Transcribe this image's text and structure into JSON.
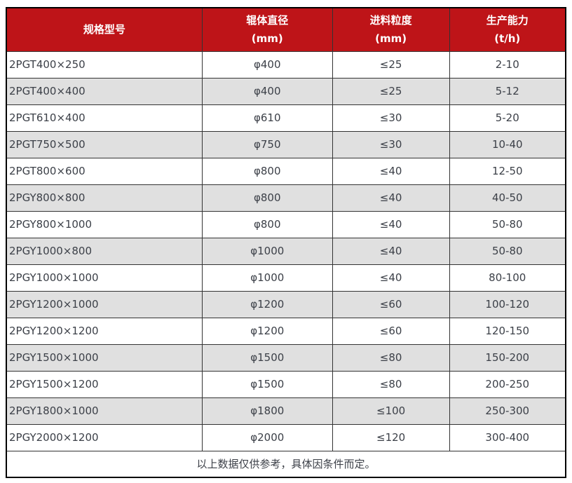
{
  "colors": {
    "header_bg": "#be1418",
    "header_text": "#ffffff",
    "row_bg": "#ffffff",
    "row_alt_bg": "#e0e0e0",
    "border_inner": "#333333",
    "border_outer": "#000000",
    "text_color": "#3c4048"
  },
  "table": {
    "columns": [
      {
        "line1": "规格型号",
        "line2": ""
      },
      {
        "line1": "辊体直径",
        "line2": "(mm)"
      },
      {
        "line1": "进料粒度",
        "line2": "(mm)"
      },
      {
        "line1": "生产能力",
        "line2": "(t/h)"
      }
    ],
    "rows": [
      [
        "2PGT400×250",
        "φ400",
        "≤25",
        "2-10"
      ],
      [
        "2PGT400×400",
        "φ400",
        "≤25",
        "5-12"
      ],
      [
        "2PGT610×400",
        "φ610",
        "≤30",
        "5-20"
      ],
      [
        "2PGT750×500",
        "φ750",
        "≤30",
        "10-40"
      ],
      [
        "2PGT800×600",
        "φ800",
        "≤40",
        "12-50"
      ],
      [
        "2PGY800×800",
        "φ800",
        "≤40",
        "40-50"
      ],
      [
        "2PGY800×1000",
        "φ800",
        "≤40",
        "50-80"
      ],
      [
        "2PGY1000×800",
        "φ1000",
        "≤40",
        "50-80"
      ],
      [
        "2PGY1000×1000",
        "φ1000",
        "≤40",
        "80-100"
      ],
      [
        "2PGY1200×1000",
        "φ1200",
        "≤60",
        "100-120"
      ],
      [
        "2PGY1200×1200",
        "φ1200",
        "≤60",
        "120-150"
      ],
      [
        "2PGY1500×1000",
        "φ1500",
        "≤80",
        "150-200"
      ],
      [
        "2PGY1500×1200",
        "φ1500",
        "≤80",
        "200-250"
      ],
      [
        "2PGY1800×1000",
        "φ1800",
        "≤100",
        "250-300"
      ],
      [
        "2PGY2000×1200",
        "φ2000",
        "≤120",
        "300-400"
      ]
    ],
    "footnote": "以上数据仅供参考，具体因条件而定。"
  }
}
